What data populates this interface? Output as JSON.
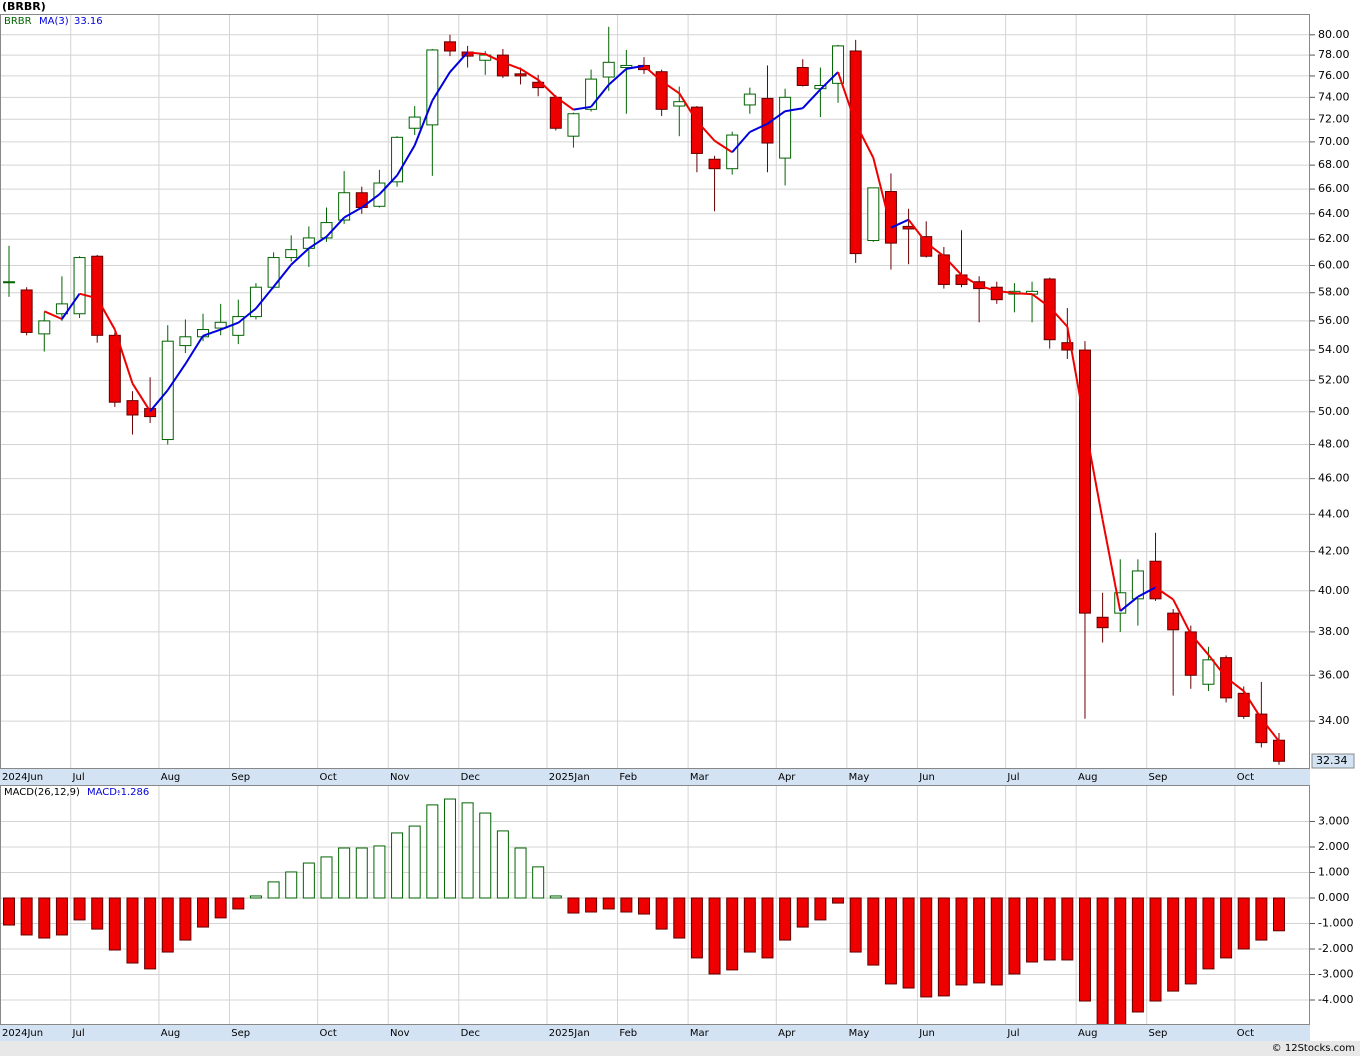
{
  "chart_data": [
    {
      "type": "candlestick",
      "title": "(BRBR)",
      "symbol": "BRBR",
      "categories": [
        "2024Jun",
        null,
        null,
        null,
        "Jul",
        null,
        null,
        null,
        null,
        "Aug",
        null,
        null,
        null,
        "Sep",
        null,
        null,
        null,
        null,
        "Oct",
        null,
        null,
        null,
        "Nov",
        null,
        null,
        null,
        "Dec",
        null,
        null,
        null,
        null,
        "2025Jan",
        null,
        null,
        null,
        "Feb",
        null,
        null,
        null,
        "Mar",
        null,
        null,
        null,
        null,
        "Apr",
        null,
        null,
        null,
        "May",
        null,
        null,
        null,
        "Jun",
        null,
        null,
        null,
        null,
        "Jul",
        null,
        null,
        null,
        "Aug",
        null,
        null,
        null,
        "Sep",
        null,
        null,
        null,
        null,
        "Oct",
        null,
        null
      ],
      "open": [
        58.8,
        58.2,
        55.1,
        56.5,
        56.5,
        60.7,
        55.0,
        50.7,
        50.2,
        48.3,
        54.3,
        54.9,
        55.5,
        55.0,
        56.3,
        58.4,
        60.6,
        61.3,
        62.1,
        63.5,
        65.7,
        64.6,
        66.6,
        71.2,
        71.5,
        79.3,
        78.3,
        77.5,
        78.0,
        76.2,
        75.4,
        74.0,
        70.5,
        72.9,
        75.9,
        76.8,
        77.0,
        76.4,
        73.2,
        73.1,
        68.5,
        67.7,
        73.3,
        73.9,
        68.6,
        76.8,
        74.8,
        75.3,
        78.4,
        61.9,
        65.8,
        63.0,
        62.2,
        60.8,
        59.3,
        58.8,
        58.4,
        57.9,
        57.9,
        59.0,
        54.5,
        54.0,
        38.7,
        38.9,
        39.6,
        41.5,
        38.9,
        38.0,
        35.6,
        36.8,
        35.2,
        34.3,
        33.2
      ],
      "high": [
        61.5,
        58.4,
        56.6,
        59.2,
        60.7,
        60.8,
        55.2,
        51.3,
        52.2,
        55.7,
        56.1,
        56.5,
        57.2,
        57.5,
        58.7,
        61.0,
        62.3,
        63.0,
        64.5,
        67.5,
        66.2,
        67.6,
        70.5,
        73.2,
        78.6,
        80.0,
        78.9,
        78.4,
        78.6,
        76.8,
        76.1,
        74.2,
        72.6,
        76.6,
        80.8,
        78.5,
        77.8,
        76.6,
        75.0,
        73.2,
        68.8,
        70.9,
        74.9,
        77.0,
        74.8,
        77.6,
        76.8,
        79.0,
        79.5,
        66.1,
        67.3,
        64.4,
        63.4,
        61.4,
        62.7,
        59.2,
        58.8,
        58.7,
        58.8,
        59.1,
        56.9,
        54.6,
        39.9,
        41.6,
        41.6,
        43.0,
        39.1,
        38.3,
        37.3,
        36.9,
        35.5,
        35.7,
        33.5
      ],
      "low": [
        57.7,
        55.0,
        53.9,
        56.0,
        56.2,
        54.5,
        50.3,
        48.6,
        49.3,
        48.0,
        53.8,
        54.6,
        55.0,
        54.4,
        56.1,
        58.3,
        60.3,
        59.9,
        61.8,
        63.2,
        64.0,
        64.5,
        66.2,
        70.6,
        67.1,
        77.9,
        76.8,
        76.1,
        75.8,
        75.2,
        74.1,
        71.0,
        69.5,
        72.7,
        74.6,
        72.5,
        76.2,
        72.3,
        70.5,
        67.4,
        64.2,
        67.2,
        72.5,
        67.4,
        66.3,
        75.0,
        72.2,
        73.5,
        60.2,
        61.8,
        59.7,
        60.1,
        60.6,
        58.3,
        58.4,
        55.9,
        57.2,
        56.6,
        55.9,
        54.1,
        53.4,
        34.1,
        37.5,
        38.0,
        38.3,
        39.5,
        35.1,
        35.4,
        35.3,
        34.8,
        34.1,
        32.9,
        32.2
      ],
      "close": [
        58.8,
        55.2,
        56.0,
        57.2,
        60.6,
        55.0,
        50.6,
        49.8,
        49.7,
        54.6,
        54.9,
        55.4,
        55.9,
        56.3,
        58.4,
        60.6,
        61.2,
        62.1,
        63.3,
        65.7,
        64.5,
        66.5,
        70.4,
        72.2,
        78.5,
        78.4,
        77.9,
        78.0,
        76.0,
        76.0,
        74.9,
        71.2,
        72.5,
        75.7,
        77.3,
        77.0,
        76.6,
        72.9,
        73.6,
        69.0,
        67.7,
        70.6,
        74.3,
        69.9,
        74.0,
        75.1,
        75.1,
        78.9,
        60.9,
        66.1,
        61.7,
        62.8,
        60.7,
        58.6,
        58.6,
        58.3,
        57.5,
        58.1,
        58.1,
        54.7,
        54.0,
        38.9,
        38.2,
        39.9,
        41.0,
        39.6,
        38.1,
        36.0,
        36.7,
        35.0,
        34.2,
        33.1,
        32.34
      ],
      "ma": {
        "name": "MA(3)",
        "values": [
          null,
          null,
          56.67,
          56.13,
          57.93,
          57.6,
          55.4,
          51.8,
          50.03,
          51.37,
          53.07,
          54.97,
          55.4,
          55.87,
          56.87,
          58.43,
          60.07,
          61.3,
          62.2,
          63.7,
          64.5,
          65.57,
          67.13,
          69.7,
          73.7,
          76.37,
          78.27,
          78.1,
          77.3,
          76.67,
          75.63,
          74.03,
          72.87,
          73.13,
          75.17,
          76.67,
          76.97,
          75.5,
          74.37,
          71.83,
          70.1,
          69.1,
          70.87,
          71.6,
          72.73,
          73,
          74.73,
          76.37,
          71.63,
          68.63,
          62.9,
          63.53,
          61.73,
          60.7,
          59.3,
          58.5,
          58.13,
          57.97,
          57.9,
          56.97,
          55.6,
          49.2,
          43.7,
          39,
          39.7,
          40.17,
          39.57,
          37.9,
          36.93,
          35.9,
          35.3,
          34.1,
          33.16
        ]
      },
      "colors": {
        "up": "#006400",
        "down": "#ee0000",
        "ma_up": "#0000dd",
        "ma_down": "#ee0000",
        "symbol": "#006400"
      },
      "log_scale": true,
      "grid": true,
      "ylim": [
        32.03,
        82.1
      ],
      "yticks": [
        {
          "value": 34,
          "label": "34.00"
        },
        {
          "value": 36,
          "label": "36.00"
        },
        {
          "value": 38,
          "label": "38.00"
        },
        {
          "value": 40,
          "label": "40.00"
        },
        {
          "value": 42,
          "label": "42.00"
        },
        {
          "value": 44,
          "label": "44.00"
        },
        {
          "value": 46,
          "label": "46.00"
        },
        {
          "value": 48,
          "label": "48.00"
        },
        {
          "value": 50,
          "label": "50.00"
        },
        {
          "value": 52,
          "label": "52.00"
        },
        {
          "value": 54,
          "label": "54.00"
        },
        {
          "value": 56,
          "label": "56.00"
        },
        {
          "value": 58,
          "label": "58.00"
        },
        {
          "value": 60,
          "label": "60.00"
        },
        {
          "value": 62,
          "label": "62.00"
        },
        {
          "value": 64,
          "label": "64.00"
        },
        {
          "value": 66,
          "label": "66.00"
        },
        {
          "value": 68,
          "label": "68.00"
        },
        {
          "value": 70,
          "label": "70.00"
        },
        {
          "value": 72,
          "label": "72.00"
        },
        {
          "value": 74,
          "label": "74.00"
        },
        {
          "value": 76,
          "label": "76.00"
        },
        {
          "value": 78,
          "label": "78.00"
        },
        {
          "value": 80,
          "label": "80.00"
        }
      ]
    },
    {
      "type": "bar",
      "title": "MACD(26,12,9)",
      "value_prefix": "MACD:",
      "categories": [
        "2024Jun",
        null,
        null,
        null,
        "Jul",
        null,
        null,
        null,
        null,
        "Aug",
        null,
        null,
        null,
        "Sep",
        null,
        null,
        null,
        null,
        "Oct",
        null,
        null,
        null,
        "Nov",
        null,
        null,
        null,
        "Dec",
        null,
        null,
        null,
        null,
        "2025Jan",
        null,
        null,
        null,
        "Feb",
        null,
        null,
        null,
        "Mar",
        null,
        null,
        null,
        null,
        "Apr",
        null,
        null,
        null,
        "May",
        null,
        null,
        null,
        "Jun",
        null,
        null,
        null,
        null,
        "Jul",
        null,
        null,
        null,
        "Aug",
        null,
        null,
        null,
        "Sep",
        null,
        null,
        null,
        null,
        "Oct",
        null,
        null
      ],
      "values": [
        -1.06,
        -1.45,
        -1.57,
        -1.45,
        -0.86,
        -1.22,
        -2.04,
        -2.55,
        -2.78,
        -2.12,
        -1.65,
        -1.14,
        -0.78,
        -0.43,
        0.08,
        0.63,
        1.02,
        1.37,
        1.61,
        1.96,
        1.96,
        2.04,
        2.55,
        2.82,
        3.65,
        3.88,
        3.73,
        3.33,
        2.63,
        1.96,
        1.22,
        0.08,
        -0.59,
        -0.55,
        -0.43,
        -0.55,
        -0.63,
        -1.22,
        -1.57,
        -2.35,
        -2.98,
        -2.82,
        -2.12,
        -2.35,
        -1.65,
        -1.14,
        -0.86,
        -0.2,
        -2.12,
        -2.63,
        -3.37,
        -3.53,
        -3.88,
        -3.84,
        -3.41,
        -3.33,
        -3.41,
        -2.98,
        -2.51,
        -2.43,
        -2.43,
        -4.04,
        -5.1,
        -5.0,
        -4.47,
        -4.04,
        -3.65,
        -3.37,
        -2.78,
        -2.35,
        -2.0,
        -1.65,
        -1.286
      ],
      "colors": {
        "up": "#006400",
        "down": "#ee0000",
        "title": "#000000",
        "value": "#0000dd"
      },
      "grid": true,
      "ylim": [
        -4.98,
        4.43
      ],
      "yticks": [
        {
          "value": -4,
          "label": "-4.000"
        },
        {
          "value": -3,
          "label": "-3.000"
        },
        {
          "value": -2,
          "label": "-2.000"
        },
        {
          "value": -1,
          "label": "-1.000"
        },
        {
          "value": 0,
          "label": "0.000"
        },
        {
          "value": 1,
          "label": "1.000"
        },
        {
          "value": 2,
          "label": "2.000"
        },
        {
          "value": 3,
          "label": "3.000"
        }
      ]
    }
  ],
  "footer": "© 12Stocks.com"
}
